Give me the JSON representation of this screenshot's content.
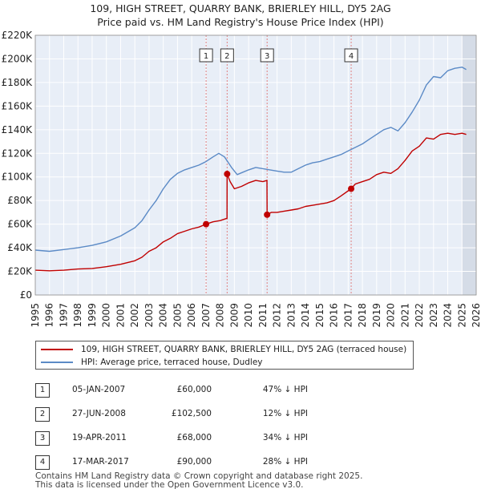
{
  "title_line1": "109, HIGH STREET, QUARRY BANK, BRIERLEY HILL, DY5 2AG",
  "title_line2": "Price paid vs. HM Land Registry's House Price Index (HPI)",
  "legend": {
    "property_label": "109, HIGH STREET, QUARRY BANK, BRIERLEY HILL, DY5 2AG (terraced house)",
    "hpi_label": "HPI: Average price, terraced house, Dudley"
  },
  "colors": {
    "property": "#c00000",
    "hpi": "#5b8ac6",
    "plot_bg": "#e8eef7",
    "future_shade": "#c8d0dc",
    "grid": "#ffffff"
  },
  "sales": [
    {
      "num": "1",
      "date": "05-JAN-2007",
      "price": "£60,000",
      "hpi": "47% ↓ HPI"
    },
    {
      "num": "2",
      "date": "27-JUN-2008",
      "price": "£102,500",
      "hpi": "12% ↓ HPI"
    },
    {
      "num": "3",
      "date": "19-APR-2011",
      "price": "£68,000",
      "hpi": "34% ↓ HPI"
    },
    {
      "num": "4",
      "date": "17-MAR-2017",
      "price": "£90,000",
      "hpi": "28% ↓ HPI"
    }
  ],
  "footer_line1": "Contains HM Land Registry data © Crown copyright and database right 2025.",
  "footer_line2": "This data is licensed under the Open Government Licence v3.0.",
  "chart_data": {
    "type": "line",
    "title": "109, HIGH STREET, QUARRY BANK, BRIERLEY HILL, DY5 2AG — Price paid vs. HM Land Registry's House Price Index (HPI)",
    "xlabel": "",
    "ylabel": "",
    "xlim": [
      1995,
      2026
    ],
    "ylim": [
      0,
      220000
    ],
    "x_ticks": [
      1995,
      1996,
      1997,
      1998,
      1999,
      2000,
      2001,
      2002,
      2003,
      2004,
      2005,
      2006,
      2007,
      2008,
      2009,
      2010,
      2011,
      2012,
      2013,
      2014,
      2015,
      2016,
      2017,
      2018,
      2019,
      2020,
      2021,
      2022,
      2023,
      2024,
      2025,
      2026
    ],
    "y_ticks": [
      0,
      20000,
      40000,
      60000,
      80000,
      100000,
      120000,
      140000,
      160000,
      180000,
      200000,
      220000
    ],
    "y_tick_labels": [
      "£0",
      "£20K",
      "£40K",
      "£60K",
      "£80K",
      "£100K",
      "£120K",
      "£140K",
      "£160K",
      "£180K",
      "£200K",
      "£220K"
    ],
    "grid": true,
    "future_from": 2025.0,
    "series": [
      {
        "name": "109, HIGH STREET, QUARRY BANK, BRIERLEY HILL, DY5 2AG (terraced house)",
        "x": [
          1995.0,
          1996.0,
          1997.0,
          1998.0,
          1999.0,
          2000.0,
          2001.0,
          2002.0,
          2002.5,
          2003.0,
          2003.5,
          2004.0,
          2004.5,
          2005.0,
          2005.5,
          2006.0,
          2006.5,
          2007.01,
          2007.5,
          2008.0,
          2008.48,
          2008.49,
          2008.7,
          2009.0,
          2009.5,
          2010.0,
          2010.5,
          2011.0,
          2011.29,
          2011.3,
          2011.6,
          2012.0,
          2012.5,
          2013.0,
          2013.5,
          2014.0,
          2014.5,
          2015.0,
          2015.5,
          2016.0,
          2016.5,
          2017.2,
          2017.5,
          2018.0,
          2018.5,
          2019.0,
          2019.5,
          2020.0,
          2020.5,
          2021.0,
          2021.5,
          2022.0,
          2022.5,
          2023.0,
          2023.5,
          2024.0,
          2024.5,
          2025.0,
          2025.3
        ],
        "y": [
          21000,
          20500,
          21000,
          22000,
          22500,
          24000,
          26000,
          29000,
          32000,
          37000,
          40000,
          45000,
          48000,
          52000,
          54000,
          56000,
          57500,
          60000,
          62000,
          63000,
          65000,
          102500,
          96000,
          90000,
          92000,
          95000,
          97000,
          96000,
          97000,
          68000,
          70000,
          70000,
          71000,
          72000,
          73000,
          75000,
          76000,
          77000,
          78000,
          80000,
          84000,
          90000,
          94000,
          96000,
          98000,
          102000,
          104000,
          103000,
          107000,
          114000,
          122000,
          126000,
          133000,
          132000,
          136000,
          137000,
          136000,
          137000,
          136000
        ]
      },
      {
        "name": "HPI: Average price, terraced house, Dudley",
        "x": [
          1995.0,
          1996.0,
          1997.0,
          1998.0,
          1999.0,
          2000.0,
          2001.0,
          2002.0,
          2002.5,
          2003.0,
          2003.5,
          2004.0,
          2004.5,
          2005.0,
          2005.5,
          2006.0,
          2006.5,
          2007.0,
          2007.5,
          2007.9,
          2008.3,
          2008.8,
          2009.2,
          2009.6,
          2010.0,
          2010.5,
          2011.0,
          2011.5,
          2012.0,
          2012.5,
          2013.0,
          2013.5,
          2014.0,
          2014.5,
          2015.0,
          2015.5,
          2016.0,
          2016.5,
          2017.0,
          2017.5,
          2018.0,
          2018.5,
          2019.0,
          2019.5,
          2020.0,
          2020.5,
          2021.0,
          2021.5,
          2022.0,
          2022.5,
          2023.0,
          2023.5,
          2024.0,
          2024.5,
          2025.0,
          2025.3
        ],
        "y": [
          38000,
          37000,
          38500,
          40000,
          42000,
          45000,
          50000,
          57000,
          63000,
          72000,
          80000,
          90000,
          98000,
          103000,
          106000,
          108000,
          110000,
          113000,
          117000,
          120000,
          117000,
          108000,
          102000,
          104000,
          106000,
          108000,
          107000,
          106000,
          105000,
          104000,
          104000,
          107000,
          110000,
          112000,
          113000,
          115000,
          117000,
          119000,
          122000,
          125000,
          128000,
          132000,
          136000,
          140000,
          142000,
          139000,
          146000,
          155000,
          165000,
          178000,
          185000,
          184000,
          190000,
          192000,
          193000,
          191000
        ]
      }
    ],
    "annotations": [
      {
        "label": "1",
        "x": 2007.01,
        "y": 60000
      },
      {
        "label": "2",
        "x": 2008.49,
        "y": 102500
      },
      {
        "label": "3",
        "x": 2011.3,
        "y": 68000
      },
      {
        "label": "4",
        "x": 2017.21,
        "y": 90000
      }
    ]
  }
}
